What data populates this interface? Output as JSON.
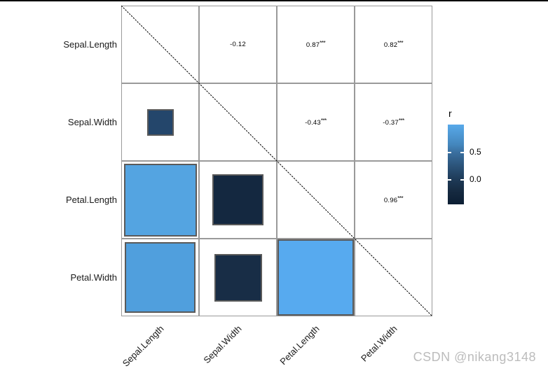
{
  "page": {
    "background": "#ffffff",
    "watermark": "CSDN @nikang3148"
  },
  "chart_data": {
    "type": "heatmap",
    "subtype": "correlation-matrix-mixed",
    "title": "",
    "variables": [
      "Sepal.Length",
      "Sepal.Width",
      "Petal.Length",
      "Petal.Width"
    ],
    "upper_triangle": "coefficient text",
    "lower_triangle": "squares sized by sqrt(|r|), colored by r",
    "grid_line_color": "#9a9a9a",
    "diagonal_line_color": "#000000",
    "correlations": [
      {
        "var1": "Sepal.Length",
        "var2": "Sepal.Width",
        "r": -0.12,
        "label": "-0.12",
        "significance": "",
        "color": "#24466b"
      },
      {
        "var1": "Sepal.Length",
        "var2": "Petal.Length",
        "r": 0.87,
        "label": "0.87",
        "significance": "***",
        "color": "#54a4e1"
      },
      {
        "var1": "Sepal.Length",
        "var2": "Petal.Width",
        "r": 0.82,
        "label": "0.82",
        "significance": "***",
        "color": "#509fdd"
      },
      {
        "var1": "Sepal.Width",
        "var2": "Petal.Length",
        "r": -0.43,
        "label": "-0.43",
        "significance": "***",
        "color": "#142840"
      },
      {
        "var1": "Sepal.Width",
        "var2": "Petal.Width",
        "r": -0.37,
        "label": "-0.37",
        "significance": "***",
        "color": "#182d46"
      },
      {
        "var1": "Petal.Length",
        "var2": "Petal.Width",
        "r": 0.96,
        "label": "0.96",
        "significance": "***",
        "color": "#57aaef"
      }
    ],
    "legend": {
      "title": "r",
      "tick_labels": [
        "0.5",
        "0.0"
      ],
      "tick_values": [
        0.5,
        0.0
      ],
      "gradient_top_color": "#58a9ea",
      "gradient_bottom_color": "#0c1e33",
      "value_at_top": 1.0,
      "value_at_bottom": -0.45,
      "position": "right"
    }
  }
}
